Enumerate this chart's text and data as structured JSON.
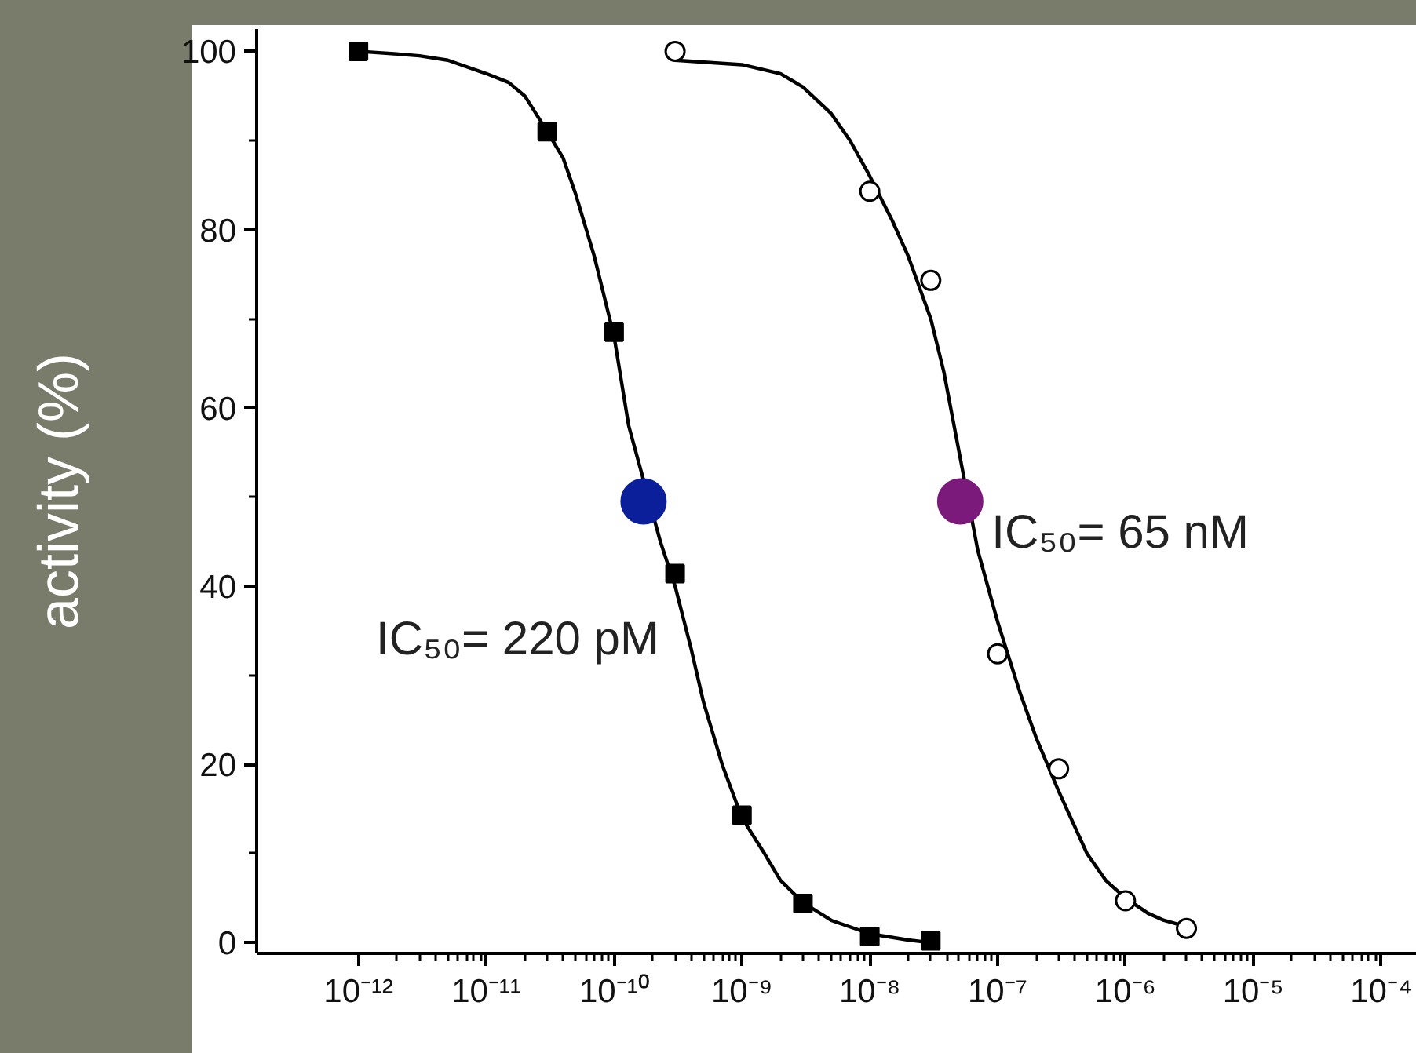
{
  "chart_data": {
    "type": "scatter",
    "ylabel": "activity (%)",
    "xlim": [
      1.6e-13,
      0.00019
    ],
    "ylim": [
      -1.2,
      102.5
    ],
    "log": "x",
    "grid": false,
    "xticks": [
      {
        "value": 1e-12,
        "label": "10⁻¹²"
      },
      {
        "value": 1e-11,
        "label": "10⁻¹¹"
      },
      {
        "value": 1e-10,
        "label": "10⁻¹⁰"
      },
      {
        "value": 1e-09,
        "label": "10⁻⁹"
      },
      {
        "value": 1e-08,
        "label": "10⁻⁸"
      },
      {
        "value": 1e-07,
        "label": "10⁻⁷"
      },
      {
        "value": 1e-06,
        "label": "10⁻⁶"
      },
      {
        "value": 1e-05,
        "label": "10⁻⁵"
      },
      {
        "value": 0.0001,
        "label": "10⁻⁴"
      }
    ],
    "yticks": [
      0,
      {
        "value": 10,
        "label": null
      },
      20,
      {
        "value": 30,
        "label": null
      },
      40,
      {
        "value": 50,
        "label": null
      },
      60,
      {
        "value": 70,
        "label": null
      },
      80,
      {
        "value": 90,
        "label": null
      },
      100
    ],
    "series": [
      {
        "type": "line",
        "color": "#000000",
        "marker": "none",
        "line_style": "solid",
        "x": [
          1e-12,
          2e-12,
          3e-12,
          5e-12,
          1e-11,
          1.5e-11,
          2e-11,
          3e-11,
          4e-11,
          5e-11,
          7e-11,
          1e-10,
          1.3e-10,
          2.3e-10,
          3e-10,
          4e-10,
          5e-10,
          7e-10,
          1e-09,
          1.5e-09,
          2e-09,
          3e-09,
          5e-09,
          1e-08,
          2e-08,
          3e-08
        ],
        "values": [
          100,
          99.7,
          99.5,
          99,
          97.5,
          96.5,
          95,
          91,
          88,
          84,
          77,
          68,
          58,
          45,
          40,
          33,
          27,
          20,
          14,
          10,
          7,
          4.5,
          2.5,
          1,
          0.3,
          0
        ]
      },
      {
        "type": "line",
        "color": "#000000",
        "marker": "none",
        "line_style": "solid",
        "x": [
          3e-10,
          1e-09,
          2e-09,
          3e-09,
          5e-09,
          7e-09,
          1e-08,
          1.5e-08,
          2e-08,
          3e-08,
          3.8e-08,
          7e-08,
          1e-07,
          1.5e-07,
          2e-07,
          3e-07,
          5e-07,
          7e-07,
          1e-06,
          1.5e-06,
          2e-06,
          3e-06
        ],
        "values": [
          99,
          98.5,
          97.5,
          96,
          93,
          90,
          86,
          81,
          77,
          70,
          64,
          44,
          36,
          28,
          23,
          17,
          10,
          7,
          5,
          3.3,
          2.5,
          1.8
        ]
      },
      {
        "color": "#000000",
        "marker": "square",
        "x": [
          1e-12,
          3e-11,
          1e-10,
          3e-10,
          1e-09,
          3e-09,
          1e-08,
          3e-08
        ],
        "values": [
          100,
          91,
          68.5,
          41.4,
          14.3,
          4.4,
          0.7,
          0.2
        ]
      },
      {
        "color": "#ffffff",
        "marker": "circle",
        "x": [
          3e-10,
          1e-08,
          3e-08,
          1e-07,
          3e-07,
          1e-06,
          3e-06
        ],
        "values": [
          100,
          84.3,
          74.3,
          32.4,
          19.5,
          4.7,
          1.6
        ]
      },
      {
        "colors": [
          "#0a1f99",
          "#7b1a7b"
        ],
        "marker": "circle",
        "x": [
          1.7e-10,
          5.1e-08
        ],
        "values": [
          49.5,
          49.5
        ]
      }
    ],
    "annotations": [
      "IC₅₀= 220 pM",
      "IC₅₀= 65 nM"
    ]
  }
}
